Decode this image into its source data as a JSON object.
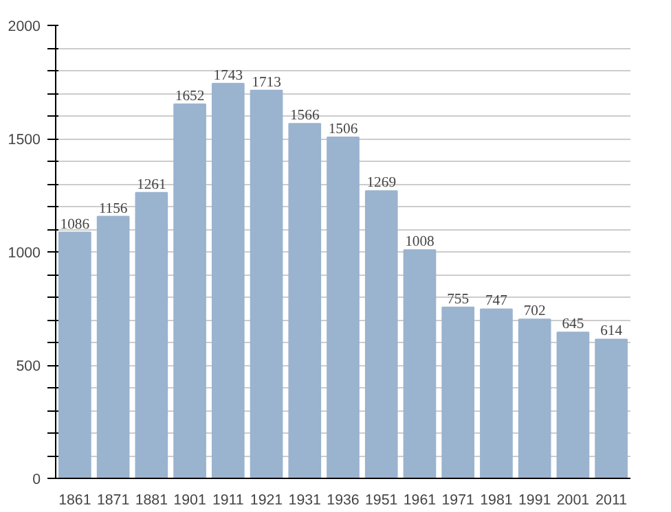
{
  "chart_data": {
    "type": "bar",
    "categories": [
      "1861",
      "1871",
      "1881",
      "1901",
      "1911",
      "1921",
      "1931",
      "1936",
      "1951",
      "1961",
      "1971",
      "1981",
      "1991",
      "2001",
      "2011"
    ],
    "values": [
      1086,
      1156,
      1261,
      1652,
      1743,
      1713,
      1566,
      1506,
      1269,
      1008,
      755,
      747,
      702,
      645,
      614
    ],
    "color": "#9ab3cf",
    "data_labels": true,
    "grid": "y",
    "ylim": [
      0,
      2000
    ],
    "yticks": [
      0,
      {
        "value": 100,
        "label": null
      },
      {
        "value": 200,
        "label": null
      },
      {
        "value": 300,
        "label": null
      },
      {
        "value": 400,
        "label": null
      },
      500,
      {
        "value": 600,
        "label": null
      },
      {
        "value": 700,
        "label": null
      },
      {
        "value": 800,
        "label": null
      },
      {
        "value": 900,
        "label": null
      },
      1000,
      {
        "value": 1100,
        "label": null
      },
      {
        "value": 1200,
        "label": null
      },
      {
        "value": 1300,
        "label": null
      },
      {
        "value": 1400,
        "label": null
      },
      1500,
      {
        "value": 1600,
        "label": null
      },
      {
        "value": 1700,
        "label": null
      },
      {
        "value": 1800,
        "label": null
      },
      {
        "value": 1900,
        "label": null
      },
      2000
    ]
  }
}
